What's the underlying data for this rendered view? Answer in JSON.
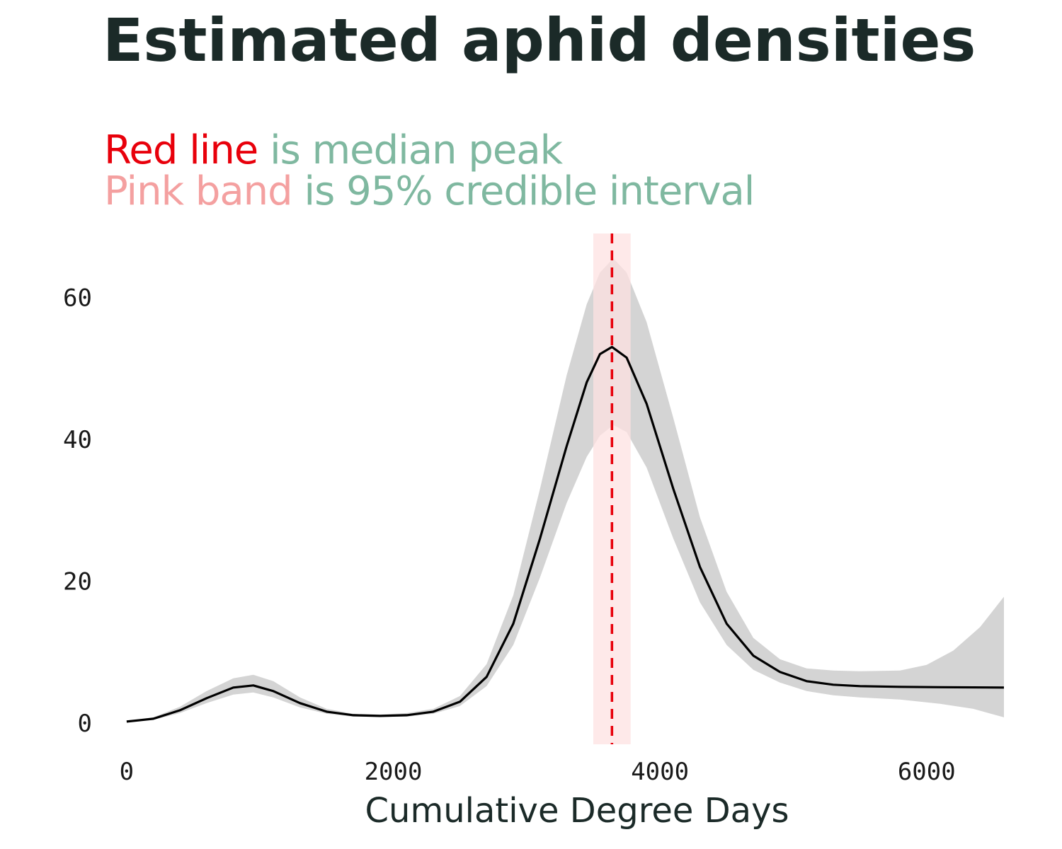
{
  "chart_data": {
    "type": "line",
    "title": "Estimated aphid densities",
    "subtitle_lines": [
      [
        {
          "text": "Red line",
          "color": "#e8000b"
        },
        {
          "text": " is median peak",
          "color": "#7fb8a0"
        }
      ],
      [
        {
          "text": "Pink band",
          "color": "#f4a0a0"
        },
        {
          "text": " is 95% credible interval",
          "color": "#7fb8a0"
        }
      ]
    ],
    "xlabel": "Cumulative Degree Days",
    "ylabel": "",
    "xlim": [
      -180,
      6580
    ],
    "ylim": [
      -3,
      69
    ],
    "x_ticks": [
      0,
      2000,
      4000,
      6000
    ],
    "y_ticks": [
      0,
      20,
      40,
      60
    ],
    "grid": false,
    "series": [
      {
        "role": "median_curve",
        "color": "#000000",
        "points": [
          [
            0,
            0.2
          ],
          [
            200,
            0.6
          ],
          [
            400,
            1.8
          ],
          [
            600,
            3.5
          ],
          [
            800,
            5.0
          ],
          [
            950,
            5.3
          ],
          [
            1100,
            4.5
          ],
          [
            1300,
            2.8
          ],
          [
            1500,
            1.6
          ],
          [
            1700,
            1.1
          ],
          [
            1900,
            1.0
          ],
          [
            2100,
            1.1
          ],
          [
            2300,
            1.6
          ],
          [
            2500,
            3.0
          ],
          [
            2700,
            6.5
          ],
          [
            2900,
            14
          ],
          [
            3100,
            26
          ],
          [
            3300,
            39
          ],
          [
            3450,
            48
          ],
          [
            3550,
            52
          ],
          [
            3640,
            53
          ],
          [
            3750,
            51.5
          ],
          [
            3900,
            45
          ],
          [
            4100,
            33
          ],
          [
            4300,
            22
          ],
          [
            4500,
            14
          ],
          [
            4700,
            9.5
          ],
          [
            4900,
            7.2
          ],
          [
            5100,
            5.9
          ],
          [
            5300,
            5.4
          ],
          [
            5500,
            5.2
          ],
          [
            5800,
            5.1
          ],
          [
            6100,
            5.05
          ],
          [
            6580,
            5.0
          ]
        ]
      },
      {
        "role": "uncertainty_ribbon",
        "color": "#d4d4d4",
        "upper": [
          [
            0,
            0.3
          ],
          [
            200,
            0.8
          ],
          [
            400,
            2.3
          ],
          [
            600,
            4.5
          ],
          [
            800,
            6.3
          ],
          [
            950,
            6.8
          ],
          [
            1100,
            5.9
          ],
          [
            1300,
            3.6
          ],
          [
            1500,
            2.0
          ],
          [
            1700,
            1.3
          ],
          [
            1900,
            1.2
          ],
          [
            2100,
            1.4
          ],
          [
            2300,
            2.0
          ],
          [
            2500,
            3.8
          ],
          [
            2700,
            8.3
          ],
          [
            2900,
            18
          ],
          [
            3100,
            33
          ],
          [
            3300,
            49
          ],
          [
            3450,
            59
          ],
          [
            3550,
            63.5
          ],
          [
            3650,
            65.5
          ],
          [
            3750,
            63.5
          ],
          [
            3900,
            56.5
          ],
          [
            4100,
            43
          ],
          [
            4300,
            29
          ],
          [
            4500,
            18.5
          ],
          [
            4700,
            12
          ],
          [
            4900,
            9
          ],
          [
            5100,
            7.7
          ],
          [
            5300,
            7.4
          ],
          [
            5500,
            7.3
          ],
          [
            5800,
            7.4
          ],
          [
            6000,
            8.2
          ],
          [
            6200,
            10.2
          ],
          [
            6400,
            13.5
          ],
          [
            6580,
            17.8
          ]
        ],
        "lower": [
          [
            0,
            0.1
          ],
          [
            200,
            0.45
          ],
          [
            400,
            1.4
          ],
          [
            600,
            2.8
          ],
          [
            800,
            4.0
          ],
          [
            950,
            4.3
          ],
          [
            1100,
            3.6
          ],
          [
            1300,
            2.2
          ],
          [
            1500,
            1.3
          ],
          [
            1700,
            0.9
          ],
          [
            1900,
            0.85
          ],
          [
            2100,
            0.9
          ],
          [
            2300,
            1.3
          ],
          [
            2500,
            2.4
          ],
          [
            2700,
            5.2
          ],
          [
            2900,
            11
          ],
          [
            3100,
            20.5
          ],
          [
            3300,
            31
          ],
          [
            3450,
            37.5
          ],
          [
            3550,
            40.5
          ],
          [
            3650,
            42
          ],
          [
            3750,
            41
          ],
          [
            3900,
            36
          ],
          [
            4100,
            26
          ],
          [
            4300,
            17
          ],
          [
            4500,
            11
          ],
          [
            4700,
            7.5
          ],
          [
            4900,
            5.7
          ],
          [
            5100,
            4.5
          ],
          [
            5300,
            3.9
          ],
          [
            5500,
            3.6
          ],
          [
            5800,
            3.3
          ],
          [
            6100,
            2.7
          ],
          [
            6350,
            2.0
          ],
          [
            6580,
            0.8
          ]
        ]
      }
    ],
    "median_peak": {
      "x": 3640,
      "color": "#e8000b",
      "style": "dashed"
    },
    "credible_interval": {
      "x": [
        3500,
        3780
      ],
      "color": "#fde2e2"
    }
  }
}
